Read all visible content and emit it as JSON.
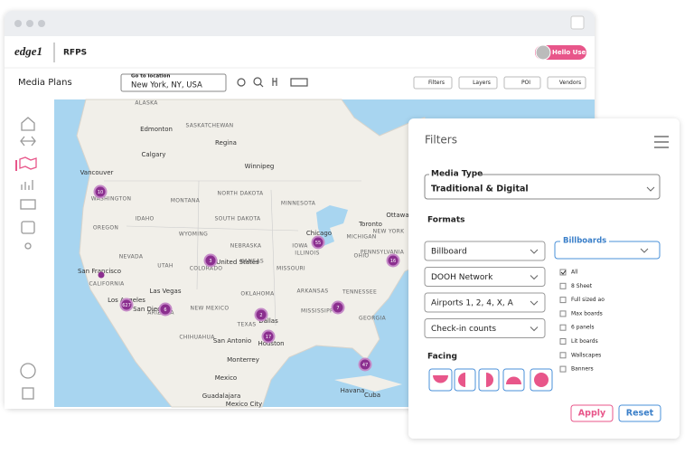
{
  "header": {
    "brand": "edge1",
    "app": "RFPS",
    "user": "Hello User"
  },
  "toolbar": {
    "title": "Media Plans",
    "location_label": "Go to location",
    "location_value": "New York, NY, USA",
    "buttons": [
      "Filters",
      "Layers",
      "POI",
      "Vendors"
    ]
  },
  "map": {
    "labels": [
      "ALASKA",
      "Edmonton",
      "SASKATCHEWAN",
      "Calgary",
      "Regina",
      "Winnipeg",
      "Vancouver",
      "WASHINGTON",
      "MONTANA",
      "NORTH DAKOTA",
      "MINNESOTA",
      "OREGON",
      "IDAHO",
      "SOUTH DAKOTA",
      "WYOMING",
      "IOWA",
      "NEBRASKA",
      "NEVADA",
      "UTAH",
      "COLORADO",
      "KANSAS",
      "MISSOURI",
      "ILLINOIS",
      "OHIO",
      "Toronto",
      "Ottawa",
      "MICHIGAN",
      "NEW YORK",
      "PENNSYLVANIA",
      "San Francisco",
      "CALIFORNIA",
      "Las Vegas",
      "ARIZONA",
      "Los Angeles",
      "San Diego",
      "NEW MEXICO",
      "OKLAHOMA",
      "ARKANSAS",
      "TENNESSEE",
      "TEXAS",
      "Dallas",
      "MISSISSIPPI",
      "GEORGIA",
      "CHIHUAHUA",
      "San Antonio",
      "Houston",
      "Monterrey",
      "Mexico",
      "Guadalajara",
      "Mexico City",
      "Havana",
      "Cuba",
      "United States",
      "Chicago"
    ],
    "clusters": [
      10,
      3,
      55,
      16,
      627,
      6,
      2,
      7,
      17,
      47
    ]
  },
  "filters": {
    "title": "Filters",
    "media_type_label": "Media Type",
    "media_type_value": "Traditional & Digital",
    "formats_label": "Formats",
    "formats": [
      "Billboard",
      "DOOH Network",
      "Airports 1, 2, 4, X, A",
      "Check-in counts"
    ],
    "billboards_label": "Billboards",
    "options": [
      "All",
      "8 Sheet",
      "Full sized ao",
      "Max boards",
      "6 panels",
      "Lit boards",
      "Wallscapes",
      "Banners"
    ],
    "facing_label": "Facing",
    "apply": "Apply",
    "reset": "Reset"
  }
}
